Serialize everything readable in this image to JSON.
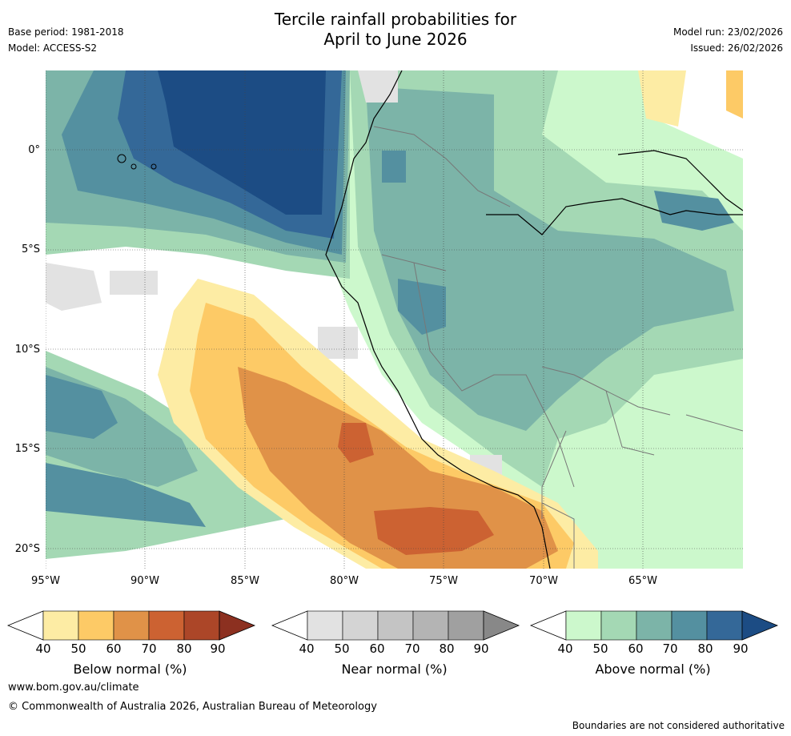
{
  "title_line1": "Tercile rainfall probabilities for",
  "title_line2": "April to June 2026",
  "meta": {
    "base_period": "Base period: 1981-2018",
    "model": "Model: ACCESS-S2",
    "model_run": "Model run: 23/02/2026",
    "issued": "Issued: 26/02/2026"
  },
  "axes": {
    "lat_labels": [
      "0°",
      "5°S",
      "10°S",
      "15°S",
      "20°S"
    ],
    "lon_labels": [
      "95°W",
      "90°W",
      "85°W",
      "80°W",
      "75°W",
      "70°W",
      "65°W"
    ]
  },
  "colorbars": [
    {
      "label": "Below normal (%)",
      "ticks": [
        "40",
        "50",
        "60",
        "70",
        "80",
        "90"
      ],
      "colors": [
        "#fdeca4",
        "#fdca66",
        "#e09248",
        "#cc6232",
        "#ac4628",
        "#8c3020"
      ]
    },
    {
      "label": "Near normal (%)",
      "ticks": [
        "40",
        "50",
        "60",
        "70",
        "80",
        "90"
      ],
      "colors": [
        "#e2e2e2",
        "#d4d4d4",
        "#c4c4c4",
        "#b4b4b4",
        "#a0a0a0",
        "#888888"
      ]
    },
    {
      "label": "Above normal (%)",
      "ticks": [
        "40",
        "50",
        "60",
        "70",
        "80",
        "90"
      ],
      "colors": [
        "#ccf8cc",
        "#a4d8b4",
        "#7cb4a8",
        "#5490a0",
        "#346898",
        "#1c4c84"
      ]
    }
  ],
  "footer": {
    "url": "www.bom.gov.au/climate",
    "copyright": "© Commonwealth of Australia 2026, Australian Bureau of Meteorology",
    "disclaimer": "Boundaries are not considered authoritative"
  }
}
